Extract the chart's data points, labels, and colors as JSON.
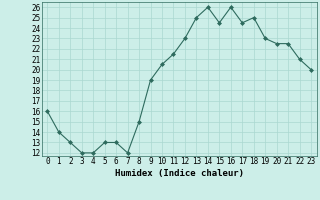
{
  "x": [
    0,
    1,
    2,
    3,
    4,
    5,
    6,
    7,
    8,
    9,
    10,
    11,
    12,
    13,
    14,
    15,
    16,
    17,
    18,
    19,
    20,
    21,
    22,
    23
  ],
  "y": [
    16,
    14,
    13,
    12,
    12,
    13,
    13,
    12,
    15,
    19,
    20.5,
    21.5,
    23,
    25,
    26,
    24.5,
    26,
    24.5,
    25,
    23,
    22.5,
    22.5,
    21,
    20
  ],
  "xlabel": "Humidex (Indice chaleur)",
  "xlim_min": -0.5,
  "xlim_max": 23.5,
  "ylim_min": 11.7,
  "ylim_max": 26.5,
  "yticks": [
    12,
    13,
    14,
    15,
    16,
    17,
    18,
    19,
    20,
    21,
    22,
    23,
    24,
    25,
    26
  ],
  "xticks": [
    0,
    1,
    2,
    3,
    4,
    5,
    6,
    7,
    8,
    9,
    10,
    11,
    12,
    13,
    14,
    15,
    16,
    17,
    18,
    19,
    20,
    21,
    22,
    23
  ],
  "line_color": "#2e6b5e",
  "marker_color": "#2e6b5e",
  "bg_color": "#cceee8",
  "grid_color": "#aad8d0",
  "label_fontsize": 6.5,
  "tick_fontsize": 5.5
}
